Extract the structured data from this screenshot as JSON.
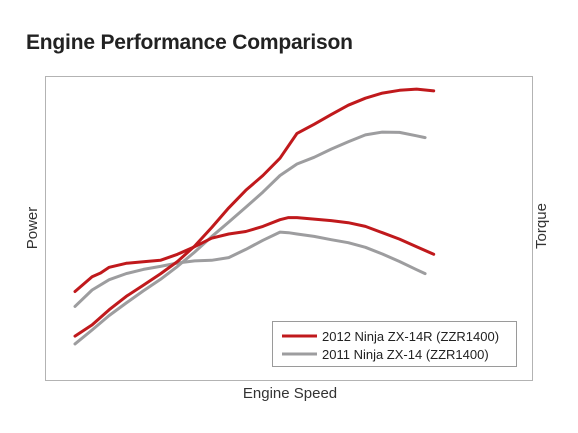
{
  "chart_data": {
    "type": "line",
    "title": "Engine Performance Comparison",
    "xlabel": "Engine Speed",
    "ylabel_left": "Power",
    "ylabel_right": "Torque",
    "xlim": [
      0,
      100
    ],
    "ylim": [
      0,
      100
    ],
    "grid": false,
    "legend_position": "bottom-right",
    "series": [
      {
        "name": "2012 Ninja ZX-14R (ZZR1400)",
        "color": "#c0191c",
        "curves": [
          {
            "measure": "power",
            "points": [
              [
                0,
                14.5
              ],
              [
                4,
                18.2
              ],
              [
                8,
                23.2
              ],
              [
                12,
                27.6
              ],
              [
                16,
                31.3
              ],
              [
                20,
                35
              ],
              [
                24,
                39.1
              ],
              [
                28,
                44.2
              ],
              [
                32,
                50.3
              ],
              [
                36,
                56.8
              ],
              [
                40,
                62.6
              ],
              [
                44,
                67.5
              ],
              [
                48,
                73.2
              ],
              [
                52,
                81.4
              ],
              [
                56,
                84.4
              ],
              [
                60,
                87.6
              ],
              [
                64,
                90.7
              ],
              [
                68,
                93
              ],
              [
                72,
                94.7
              ],
              [
                76,
                95.6
              ],
              [
                80,
                96
              ],
              [
                84,
                95.4
              ]
            ]
          },
          {
            "measure": "torque",
            "points": [
              [
                0,
                29.2
              ],
              [
                4,
                34.1
              ],
              [
                6,
                35.3
              ],
              [
                8,
                37.2
              ],
              [
                12,
                38.5
              ],
              [
                16,
                39
              ],
              [
                20,
                39.5
              ],
              [
                24,
                41.5
              ],
              [
                28,
                44
              ],
              [
                32,
                46.8
              ],
              [
                36,
                48.2
              ],
              [
                40,
                49
              ],
              [
                44,
                50.7
              ],
              [
                48,
                52.9
              ],
              [
                50,
                53.6
              ],
              [
                52,
                53.6
              ],
              [
                56,
                53.1
              ],
              [
                60,
                52.6
              ],
              [
                64,
                51.9
              ],
              [
                68,
                50.7
              ],
              [
                72,
                48.6
              ],
              [
                76,
                46.5
              ],
              [
                80,
                44
              ],
              [
                84,
                41.5
              ]
            ]
          }
        ]
      },
      {
        "name": "2011 Ninja ZX-14 (ZZR1400)",
        "color": "#9d9d9f",
        "curves": [
          {
            "measure": "power",
            "points": [
              [
                0,
                11.9
              ],
              [
                4,
                16.5
              ],
              [
                8,
                21.3
              ],
              [
                12,
                25.4
              ],
              [
                16,
                29.4
              ],
              [
                20,
                33.2
              ],
              [
                24,
                37.5
              ],
              [
                28,
                42.2
              ],
              [
                32,
                47.3
              ],
              [
                36,
                52.1
              ],
              [
                40,
                57
              ],
              [
                44,
                62
              ],
              [
                48,
                67.5
              ],
              [
                52,
                71.3
              ],
              [
                56,
                73.5
              ],
              [
                60,
                76.2
              ],
              [
                64,
                78.6
              ],
              [
                68,
                80.9
              ],
              [
                72,
                81.8
              ],
              [
                76,
                81.7
              ],
              [
                80,
                80.6
              ],
              [
                82,
                80
              ]
            ]
          },
          {
            "measure": "torque",
            "points": [
              [
                0,
                24.3
              ],
              [
                4,
                29.7
              ],
              [
                8,
                33.1
              ],
              [
                12,
                35.1
              ],
              [
                16,
                36.5
              ],
              [
                20,
                37.5
              ],
              [
                24,
                38.6
              ],
              [
                28,
                39.3
              ],
              [
                32,
                39.5
              ],
              [
                36,
                40.4
              ],
              [
                40,
                43.1
              ],
              [
                44,
                46.1
              ],
              [
                48,
                48.8
              ],
              [
                50,
                48.6
              ],
              [
                52,
                48.2
              ],
              [
                56,
                47.4
              ],
              [
                60,
                46.3
              ],
              [
                64,
                45.3
              ],
              [
                68,
                43.8
              ],
              [
                72,
                41.6
              ],
              [
                76,
                39.1
              ],
              [
                80,
                36.4
              ],
              [
                82,
                35.1
              ]
            ]
          }
        ]
      }
    ]
  }
}
